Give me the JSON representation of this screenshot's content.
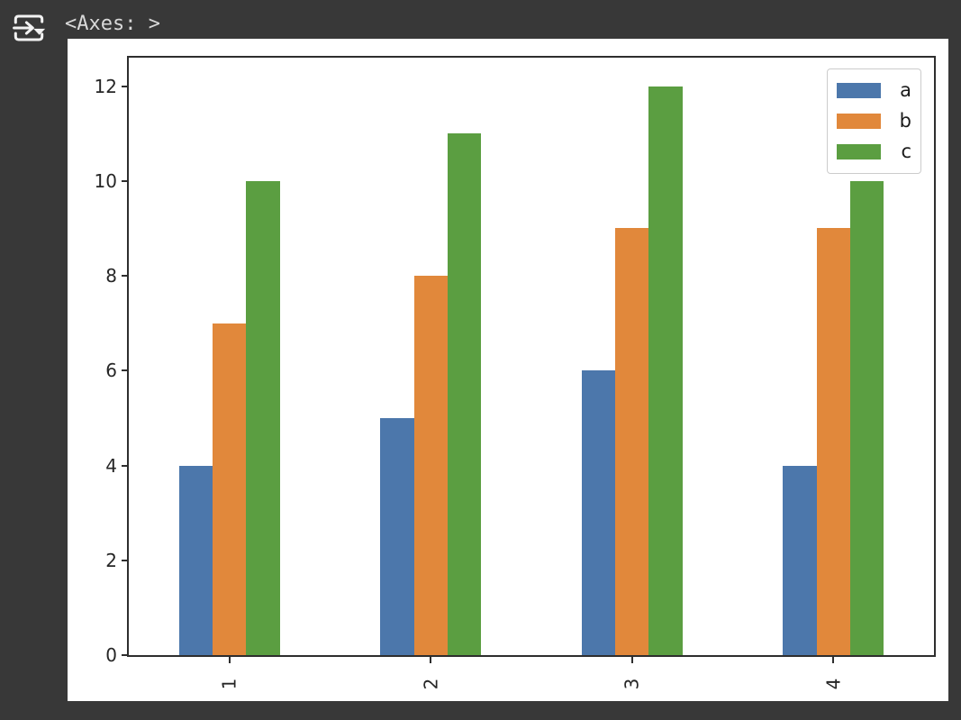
{
  "output": {
    "text": "<Axes: >",
    "icon": "output-cell-icon"
  },
  "colors": {
    "page_background": "#383838",
    "figure_background": "#ffffff",
    "spine": "#2e2e2e",
    "tick_label": "#262626",
    "legend_border": "#cccccc",
    "icon": "#f2f2f2",
    "output_text": "#d9d9d9"
  },
  "chart_data": {
    "type": "bar",
    "title": "",
    "xlabel": "",
    "ylabel": "",
    "categories": [
      "1",
      "2",
      "3",
      "4"
    ],
    "series": [
      {
        "name": "a",
        "color": "#4c77ab",
        "values": [
          4,
          5,
          6,
          4
        ]
      },
      {
        "name": "b",
        "color": "#e1883b",
        "values": [
          7,
          8,
          9,
          9
        ]
      },
      {
        "name": "c",
        "color": "#5b9e41",
        "values": [
          10,
          11,
          12,
          10
        ]
      }
    ],
    "ylim": [
      0,
      12.6
    ],
    "yticks": [
      0,
      2,
      4,
      6,
      8,
      10,
      12
    ],
    "xtick_rotation": 90,
    "grid": false,
    "legend_position": "upper right"
  }
}
